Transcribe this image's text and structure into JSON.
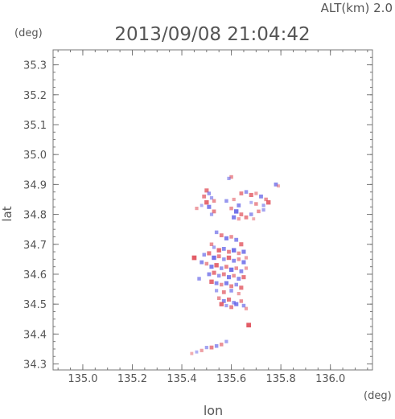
{
  "header": {
    "altitude_label": "ALT(km) 2.0",
    "timestamp": "2013/09/08 21:04:42"
  },
  "chart_data": {
    "type": "heatmap",
    "title": "2013/09/08 21:04:42",
    "xlabel": "lon",
    "ylabel": "lat",
    "xunit": "(deg)",
    "yunit": "(deg)",
    "xlim": [
      134.88,
      136.17
    ],
    "ylim": [
      34.28,
      35.35
    ],
    "xticks": [
      "135.0",
      "135.2",
      "135.4",
      "135.6",
      "135.8",
      "136.0"
    ],
    "yticks": [
      "34.3",
      "34.4",
      "34.5",
      "34.6",
      "34.7",
      "34.8",
      "34.9",
      "35.0",
      "35.1",
      "35.2",
      "35.3"
    ],
    "grid": false,
    "colors": {
      "positive": "#e0505a",
      "negative": "#5a5ae6",
      "axis": "#777777"
    },
    "cells": [
      [
        135.6,
        34.925,
        0.5
      ],
      [
        135.59,
        34.92,
        -0.4
      ],
      [
        135.78,
        34.9,
        -0.6
      ],
      [
        135.79,
        34.895,
        0.3
      ],
      [
        135.5,
        34.88,
        0.7
      ],
      [
        135.51,
        34.87,
        -0.5
      ],
      [
        135.49,
        34.86,
        0.6
      ],
      [
        135.52,
        34.855,
        -0.4
      ],
      [
        135.5,
        34.84,
        0.8
      ],
      [
        135.53,
        34.845,
        0.5
      ],
      [
        135.48,
        34.83,
        -0.3
      ],
      [
        135.51,
        34.825,
        -0.7
      ],
      [
        135.46,
        34.82,
        0.4
      ],
      [
        135.53,
        34.81,
        0.6
      ],
      [
        135.52,
        34.8,
        -0.4
      ],
      [
        135.64,
        34.87,
        0.6
      ],
      [
        135.66,
        34.875,
        -0.5
      ],
      [
        135.68,
        34.865,
        0.7
      ],
      [
        135.7,
        34.87,
        0.4
      ],
      [
        135.72,
        34.86,
        -0.6
      ],
      [
        135.74,
        34.85,
        0.5
      ],
      [
        135.75,
        34.84,
        0.8
      ],
      [
        135.73,
        34.83,
        -0.4
      ],
      [
        135.7,
        34.835,
        0.5
      ],
      [
        135.68,
        34.84,
        -0.3
      ],
      [
        135.58,
        34.845,
        -0.5
      ],
      [
        135.61,
        34.85,
        0.4
      ],
      [
        135.63,
        34.83,
        -0.6
      ],
      [
        135.6,
        34.82,
        0.5
      ],
      [
        135.62,
        34.81,
        -0.8
      ],
      [
        135.64,
        34.8,
        0.6
      ],
      [
        135.61,
        34.79,
        -0.7
      ],
      [
        135.63,
        34.785,
        0.4
      ],
      [
        135.66,
        34.79,
        0.6
      ],
      [
        135.68,
        34.8,
        -0.5
      ],
      [
        135.71,
        34.81,
        0.5
      ],
      [
        135.73,
        34.815,
        -0.4
      ],
      [
        135.69,
        34.785,
        0.3
      ],
      [
        135.54,
        34.74,
        -0.5
      ],
      [
        135.56,
        34.73,
        0.6
      ],
      [
        135.58,
        34.72,
        -0.7
      ],
      [
        135.6,
        34.725,
        0.5
      ],
      [
        135.62,
        34.715,
        -0.6
      ],
      [
        135.64,
        34.7,
        0.7
      ],
      [
        135.52,
        34.7,
        0.5
      ],
      [
        135.53,
        34.69,
        -0.4
      ],
      [
        135.55,
        34.68,
        0.8
      ],
      [
        135.57,
        34.685,
        -0.6
      ],
      [
        135.59,
        34.675,
        0.6
      ],
      [
        135.61,
        34.68,
        -0.8
      ],
      [
        135.63,
        34.67,
        0.5
      ],
      [
        135.65,
        34.675,
        -0.7
      ],
      [
        135.49,
        34.665,
        -0.5
      ],
      [
        135.51,
        34.67,
        0.7
      ],
      [
        135.53,
        34.655,
        -0.8
      ],
      [
        135.55,
        34.66,
        0.6
      ],
      [
        135.57,
        34.65,
        -0.5
      ],
      [
        135.59,
        34.655,
        0.8
      ],
      [
        135.61,
        34.645,
        -0.6
      ],
      [
        135.63,
        34.65,
        0.5
      ],
      [
        135.65,
        34.64,
        -0.7
      ],
      [
        135.66,
        34.655,
        0.4
      ],
      [
        135.45,
        34.655,
        0.9
      ],
      [
        135.48,
        34.64,
        -0.6
      ],
      [
        135.5,
        34.635,
        0.5
      ],
      [
        135.52,
        34.625,
        -0.7
      ],
      [
        135.54,
        34.63,
        0.8
      ],
      [
        135.56,
        34.62,
        -0.5
      ],
      [
        135.58,
        34.625,
        0.6
      ],
      [
        135.6,
        34.615,
        -0.8
      ],
      [
        135.62,
        34.62,
        0.5
      ],
      [
        135.64,
        34.61,
        -0.6
      ],
      [
        135.66,
        34.62,
        0.4
      ],
      [
        135.51,
        34.6,
        -0.6
      ],
      [
        135.53,
        34.605,
        0.7
      ],
      [
        135.55,
        34.595,
        -0.5
      ],
      [
        135.57,
        34.6,
        0.6
      ],
      [
        135.59,
        34.59,
        -0.7
      ],
      [
        135.61,
        34.595,
        0.5
      ],
      [
        135.63,
        34.585,
        -0.6
      ],
      [
        135.65,
        34.59,
        0.7
      ],
      [
        135.47,
        34.585,
        -0.5
      ],
      [
        135.52,
        34.575,
        0.8
      ],
      [
        135.54,
        34.57,
        -0.6
      ],
      [
        135.56,
        34.565,
        0.5
      ],
      [
        135.58,
        34.57,
        -0.7
      ],
      [
        135.6,
        34.56,
        0.6
      ],
      [
        135.62,
        34.565,
        -0.5
      ],
      [
        135.64,
        34.555,
        0.7
      ],
      [
        135.54,
        34.545,
        -0.4
      ],
      [
        135.57,
        34.54,
        0.6
      ],
      [
        135.6,
        34.545,
        -0.5
      ],
      [
        135.63,
        34.535,
        0.4
      ],
      [
        135.55,
        34.52,
        0.5
      ],
      [
        135.57,
        34.51,
        -0.6
      ],
      [
        135.59,
        34.515,
        0.7
      ],
      [
        135.61,
        34.505,
        -0.5
      ],
      [
        135.56,
        34.5,
        0.8
      ],
      [
        135.58,
        34.495,
        -0.4
      ],
      [
        135.6,
        34.49,
        0.6
      ],
      [
        135.62,
        34.5,
        -0.7
      ],
      [
        135.64,
        34.51,
        0.5
      ],
      [
        135.65,
        34.495,
        -0.5
      ],
      [
        135.66,
        34.485,
        0.4
      ],
      [
        135.67,
        34.43,
        0.9
      ],
      [
        135.58,
        34.375,
        -0.4
      ],
      [
        135.56,
        34.365,
        0.5
      ],
      [
        135.54,
        34.36,
        -0.5
      ],
      [
        135.52,
        34.355,
        0.6
      ],
      [
        135.5,
        34.355,
        -0.4
      ],
      [
        135.48,
        34.345,
        0.4
      ],
      [
        135.46,
        34.34,
        -0.3
      ],
      [
        135.44,
        34.335,
        0.3
      ]
    ]
  }
}
